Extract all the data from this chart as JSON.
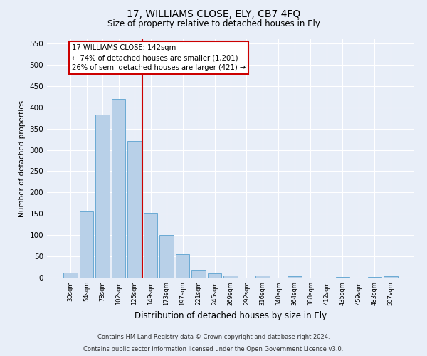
{
  "title1": "17, WILLIAMS CLOSE, ELY, CB7 4FQ",
  "title2": "Size of property relative to detached houses in Ely",
  "xlabel": "Distribution of detached houses by size in Ely",
  "ylabel": "Number of detached properties",
  "categories": [
    "30sqm",
    "54sqm",
    "78sqm",
    "102sqm",
    "125sqm",
    "149sqm",
    "173sqm",
    "197sqm",
    "221sqm",
    "245sqm",
    "269sqm",
    "292sqm",
    "316sqm",
    "340sqm",
    "364sqm",
    "388sqm",
    "412sqm",
    "435sqm",
    "459sqm",
    "483sqm",
    "507sqm"
  ],
  "values": [
    12,
    155,
    383,
    420,
    321,
    152,
    100,
    55,
    18,
    10,
    5,
    0,
    5,
    0,
    3,
    0,
    0,
    2,
    0,
    2,
    3
  ],
  "bar_color": "#b8d0e8",
  "bar_edge_color": "#6aaad4",
  "vline_color": "#cc0000",
  "annotation_text": "17 WILLIAMS CLOSE: 142sqm\n← 74% of detached houses are smaller (1,201)\n26% of semi-detached houses are larger (421) →",
  "annotation_box_color": "#ffffff",
  "annotation_box_edge_color": "#cc0000",
  "ylim": [
    0,
    560
  ],
  "yticks": [
    0,
    50,
    100,
    150,
    200,
    250,
    300,
    350,
    400,
    450,
    500,
    550
  ],
  "footer1": "Contains HM Land Registry data © Crown copyright and database right 2024.",
  "footer2": "Contains public sector information licensed under the Open Government Licence v3.0.",
  "background_color": "#e8eef8",
  "grid_color": "#ffffff"
}
